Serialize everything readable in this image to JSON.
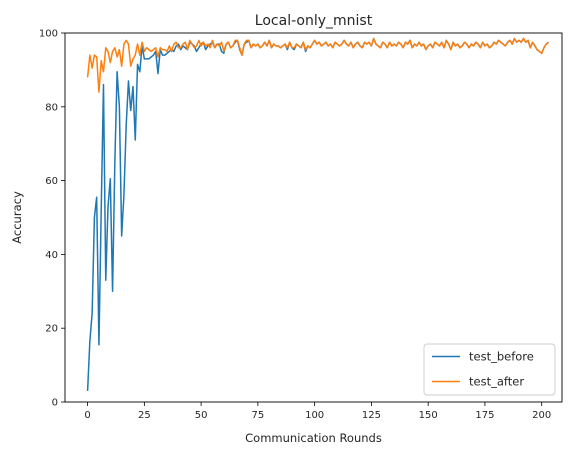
{
  "chart_data": {
    "type": "line",
    "title": "Local-only_mnist",
    "xlabel": "Communication Rounds",
    "ylabel": "Accuracy",
    "xlim": [
      -9.95,
      208.95
    ],
    "ylim": [
      0,
      100
    ],
    "xticks": [
      0,
      25,
      50,
      75,
      100,
      125,
      150,
      175,
      200
    ],
    "yticks": [
      0,
      20,
      40,
      60,
      80,
      100
    ],
    "grid": false,
    "legend_position": "lower-right",
    "series": [
      {
        "name": "test_before",
        "color": "#1f77b4",
        "values": [
          3.0,
          16.5,
          24.0,
          50.0,
          55.5,
          15.5,
          52.0,
          86.0,
          33.0,
          53.0,
          60.5,
          30.0,
          65.0,
          89.5,
          80.0,
          45.0,
          56.0,
          75.0,
          87.0,
          79.0,
          85.5,
          71.0,
          91.5,
          89.5,
          96.5,
          93.0,
          93.0,
          93.0,
          93.5,
          94.0,
          95.0,
          89.0,
          95.5,
          94.0,
          94.0,
          94.5,
          95.0,
          95.5,
          95.0,
          96.5,
          97.0,
          95.5,
          96.5,
          96.0,
          95.5,
          97.5,
          97.0,
          96.5,
          95.0,
          96.0,
          97.0,
          97.5,
          95.5,
          96.5,
          97.0,
          97.5,
          96.0,
          97.0,
          97.0,
          95.0,
          94.5,
          97.0,
          97.5,
          96.0,
          96.5,
          97.5,
          98.0,
          95.5,
          94.0,
          97.0,
          97.5,
          98.0,
          96.0,
          97.0,
          96.5,
          97.0,
          96.0,
          96.5,
          97.5,
          96.5,
          98.0,
          96.0,
          97.0,
          96.5,
          96.5,
          96.0,
          96.5,
          97.0,
          95.5,
          97.5,
          96.0,
          95.5,
          97.0,
          96.5,
          96.0,
          97.5,
          95.0,
          96.5,
          96.0,
          97.0,
          98.0,
          97.0,
          97.5,
          96.5,
          97.0,
          97.5,
          96.5,
          97.0,
          96.0,
          97.5,
          97.0,
          96.5,
          97.0,
          98.0,
          97.0,
          96.5,
          97.5,
          96.0,
          97.0,
          97.5,
          96.5,
          96.0,
          97.5,
          97.0,
          97.5,
          96.5,
          98.5,
          97.0,
          96.5,
          96.0,
          97.5,
          97.0,
          96.0,
          97.5,
          96.5,
          97.0,
          96.5,
          97.5,
          97.0,
          96.0,
          97.5,
          97.0,
          98.0,
          96.0,
          97.0,
          96.5,
          97.5,
          96.5,
          97.0,
          95.5,
          96.5,
          97.0,
          96.0,
          97.5,
          97.0,
          96.5,
          97.5,
          96.0,
          98.0,
          97.0,
          95.5,
          97.5,
          96.5,
          97.0,
          96.0,
          96.5,
          97.5,
          97.0,
          96.0,
          97.0,
          96.5,
          97.5,
          97.0,
          96.0,
          97.5,
          96.5,
          97.0,
          96.0,
          96.5,
          97.5,
          97.0,
          98.0,
          97.5,
          97.0,
          96.5,
          97.5,
          98.0,
          97.0,
          98.5,
          97.5,
          98.0,
          97.5,
          98.5,
          97.5,
          98.0,
          96.0,
          97.5,
          96.5,
          95.5,
          95.0,
          94.5,
          96.0,
          97.0,
          97.5
        ]
      },
      {
        "name": "test_after",
        "color": "#ff7f0e",
        "values": [
          88.0,
          94.0,
          90.5,
          94.0,
          93.5,
          84.0,
          92.5,
          89.5,
          96.0,
          95.0,
          92.0,
          95.0,
          96.0,
          93.5,
          95.5,
          91.0,
          97.0,
          98.0,
          97.0,
          91.0,
          93.0,
          94.0,
          97.0,
          94.0,
          97.5,
          95.0,
          96.0,
          95.5,
          95.0,
          95.5,
          96.0,
          93.5,
          96.0,
          95.5,
          95.5,
          95.0,
          96.5,
          95.0,
          97.0,
          97.5,
          96.0,
          96.0,
          97.0,
          97.5,
          95.5,
          98.0,
          97.0,
          96.0,
          96.5,
          98.0,
          96.5,
          97.5,
          96.5,
          97.0,
          96.0,
          98.0,
          96.0,
          97.0,
          96.5,
          97.5,
          95.0,
          97.0,
          97.5,
          96.0,
          96.5,
          98.0,
          98.0,
          96.0,
          94.0,
          97.0,
          98.0,
          98.0,
          96.0,
          97.0,
          96.5,
          97.0,
          96.0,
          96.5,
          97.5,
          96.5,
          98.0,
          96.0,
          97.0,
          96.5,
          96.5,
          96.0,
          96.5,
          97.0,
          96.0,
          97.5,
          96.0,
          96.0,
          97.0,
          96.5,
          96.0,
          97.5,
          95.5,
          96.5,
          96.0,
          97.0,
          98.0,
          97.0,
          97.5,
          96.5,
          97.0,
          97.5,
          96.5,
          97.0,
          96.0,
          97.5,
          97.0,
          96.5,
          97.0,
          98.0,
          97.0,
          96.5,
          97.5,
          96.0,
          97.0,
          97.5,
          96.5,
          96.0,
          97.5,
          97.0,
          97.5,
          96.5,
          98.5,
          97.0,
          96.5,
          96.0,
          97.5,
          97.0,
          96.0,
          97.5,
          96.5,
          97.0,
          96.5,
          97.5,
          97.0,
          96.0,
          97.5,
          97.0,
          98.0,
          96.0,
          97.0,
          96.5,
          97.5,
          96.5,
          97.0,
          95.5,
          96.5,
          97.0,
          96.0,
          97.5,
          97.0,
          96.5,
          97.5,
          96.0,
          98.0,
          97.0,
          95.5,
          97.5,
          96.5,
          97.0,
          96.0,
          96.5,
          97.5,
          97.0,
          96.0,
          97.0,
          96.5,
          97.5,
          97.0,
          96.0,
          97.5,
          96.5,
          97.0,
          96.0,
          96.5,
          97.5,
          97.0,
          98.0,
          97.5,
          97.0,
          96.5,
          97.5,
          98.0,
          97.0,
          98.5,
          97.5,
          98.0,
          97.5,
          98.5,
          97.5,
          98.0,
          96.0,
          97.5,
          96.5,
          95.5,
          95.0,
          94.5,
          96.0,
          97.0,
          97.5
        ]
      }
    ]
  }
}
